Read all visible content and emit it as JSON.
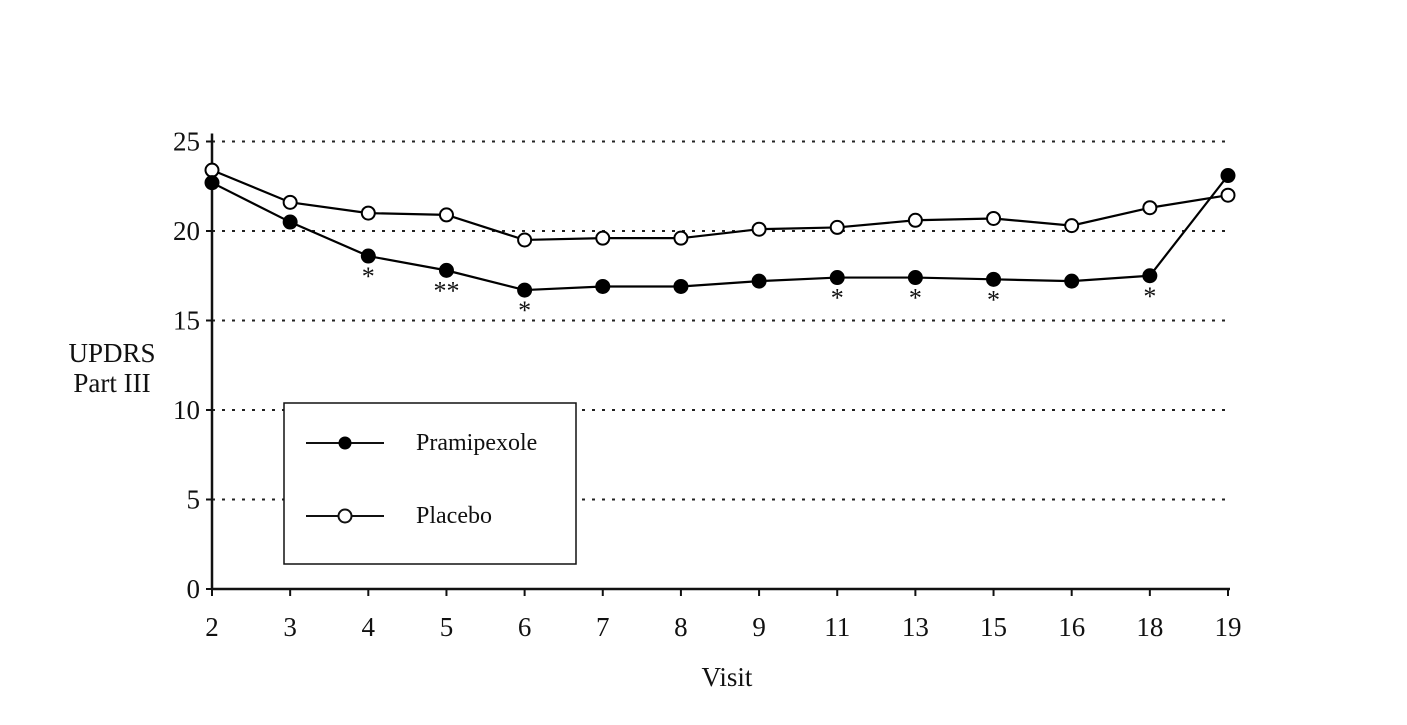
{
  "chart_data": {
    "type": "line",
    "title": "",
    "xlabel": "Visit",
    "ylabel": [
      "UPDRS",
      "Part III"
    ],
    "categories": [
      "2",
      "3",
      "4",
      "5",
      "6",
      "7",
      "8",
      "9",
      "11",
      "13",
      "15",
      "16",
      "18",
      "19"
    ],
    "ylim": [
      0,
      25
    ],
    "yticks": [
      0,
      5,
      10,
      15,
      20,
      25
    ],
    "grid": "dotted horizontal",
    "legend_position": "bottom-left",
    "series": [
      {
        "name": "Pramipexole",
        "marker": "filled-circle",
        "color": "#000000",
        "values": [
          22.7,
          20.5,
          18.6,
          17.8,
          16.7,
          16.9,
          16.9,
          17.2,
          17.4,
          17.4,
          17.3,
          17.2,
          17.5,
          23.1
        ]
      },
      {
        "name": "Placebo",
        "marker": "open-circle",
        "color": "#000000",
        "values": [
          23.4,
          21.6,
          21.0,
          20.9,
          19.5,
          19.6,
          19.6,
          20.1,
          20.2,
          20.6,
          20.7,
          20.3,
          21.3,
          22.0
        ]
      }
    ],
    "annotations": [
      {
        "visit": "4",
        "text": "*"
      },
      {
        "visit": "5",
        "text": "**"
      },
      {
        "visit": "6",
        "text": "*"
      },
      {
        "visit": "11",
        "text": "*"
      },
      {
        "visit": "13",
        "text": "*"
      },
      {
        "visit": "15",
        "text": "*"
      },
      {
        "visit": "18",
        "text": "*"
      }
    ]
  }
}
